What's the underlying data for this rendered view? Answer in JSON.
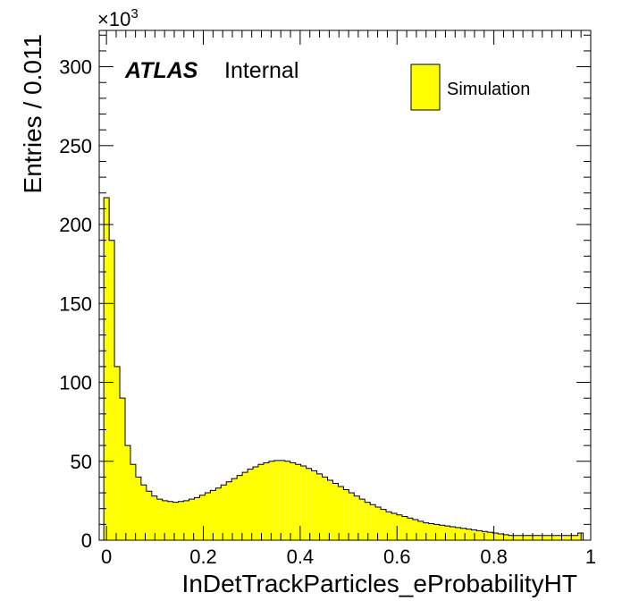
{
  "chart_data": {
    "type": "histogram",
    "title": "",
    "xlabel": "InDetTrackParticles_eProbabilityHT",
    "ylabel": "Entries / 0.011",
    "y_multiplier": "×10",
    "y_multiplier_exp": "3",
    "xlim": [
      -0.015,
      1.0
    ],
    "ylim": [
      0,
      323
    ],
    "x_ticks": [
      0,
      0.2,
      0.4,
      0.6,
      0.8,
      1
    ],
    "x_tick_labels": [
      "0",
      "0.2",
      "0.4",
      "0.6",
      "0.8",
      "1"
    ],
    "y_ticks": [
      0,
      50,
      100,
      150,
      200,
      250,
      300
    ],
    "y_tick_labels": [
      "0",
      "50",
      "100",
      "150",
      "200",
      "250",
      "300"
    ],
    "bin_width": 0.011,
    "first_bin_low_edge": -0.0055,
    "series": [
      {
        "name": "Simulation",
        "color": "#ffff00",
        "values": [
          217,
          190,
          110,
          90,
          60,
          48,
          40,
          35,
          31,
          28,
          26,
          25,
          24.5,
          24,
          24.5,
          25,
          26,
          27,
          28.5,
          30,
          31.5,
          33,
          35,
          37,
          39,
          41,
          43,
          45,
          46.5,
          48,
          49,
          50,
          50.5,
          50.5,
          50,
          49,
          48,
          47,
          45.5,
          44,
          42,
          40,
          38,
          36,
          34,
          32,
          30,
          28,
          26,
          24,
          22.5,
          21,
          19.5,
          18,
          17,
          16,
          15,
          14,
          13,
          12,
          11,
          10.5,
          10,
          9.5,
          9,
          8.5,
          8,
          7.5,
          7,
          6.5,
          6,
          5.5,
          5,
          4.5,
          4,
          3.5,
          3,
          3,
          3,
          3,
          3,
          3,
          3,
          3,
          3,
          3,
          3,
          3,
          3,
          4.5
        ]
      }
    ]
  },
  "annotations": {
    "atlas_label": "ATLAS",
    "atlas_status": "Internal"
  },
  "legend": {
    "position": "top-right",
    "entries": [
      "Simulation"
    ]
  }
}
